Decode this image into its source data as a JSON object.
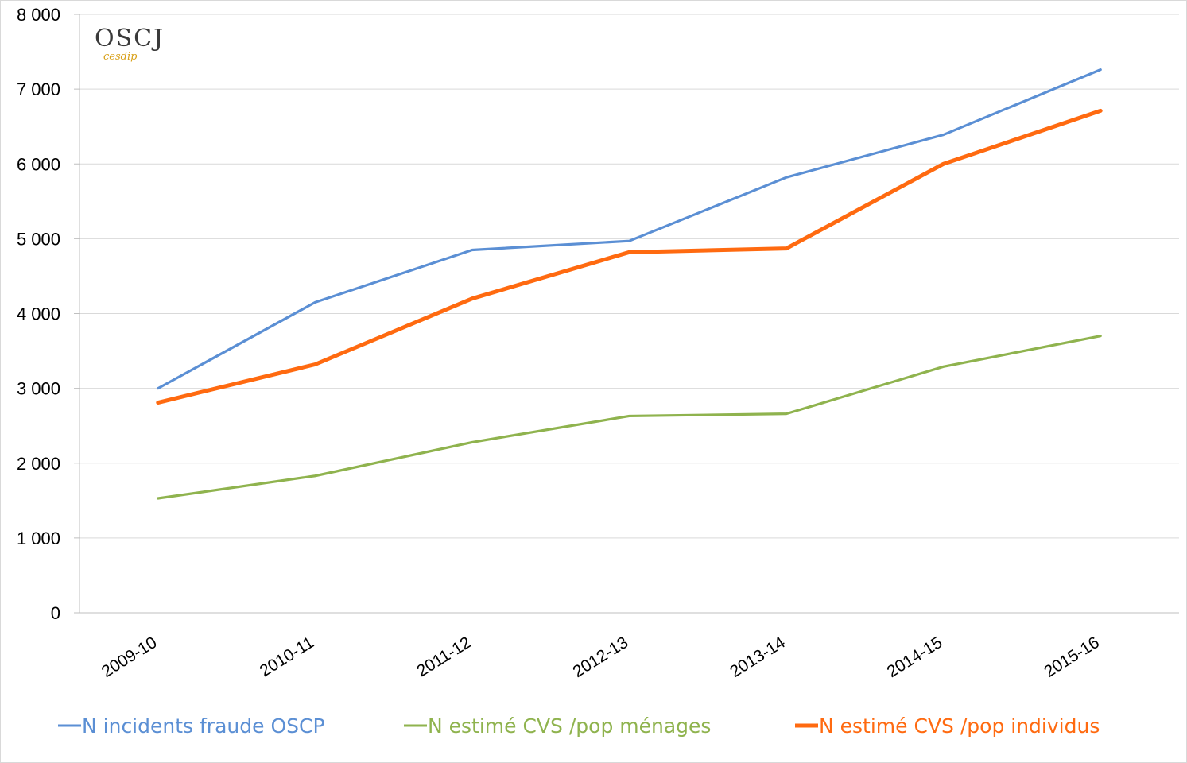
{
  "logo": {
    "text": "OSCJ",
    "subtext": "cesdip"
  },
  "chart_data": {
    "type": "line",
    "title": "",
    "xlabel": "",
    "ylabel": "",
    "categories": [
      "2009-10",
      "2010-11",
      "2011-12",
      "2012-13",
      "2013-14",
      "2014-15",
      "2015-16"
    ],
    "ylim": [
      0,
      8000
    ],
    "yticks": [
      0,
      1000,
      2000,
      3000,
      4000,
      5000,
      6000,
      7000,
      8000
    ],
    "ytick_labels": [
      "0",
      "1 000",
      "2 000",
      "3 000",
      "4 000",
      "5 000",
      "6 000",
      "7 000",
      "8 000"
    ],
    "grid": "horizontal",
    "legend_position": "bottom",
    "series": [
      {
        "name": "N incidents fraude OSCP",
        "color": "#5b8fd4",
        "values": [
          3000,
          4150,
          4850,
          4970,
          5820,
          6390,
          7260
        ]
      },
      {
        "name": "N estimé CVS /pop ménages",
        "color": "#8fb34e",
        "values": [
          1530,
          1830,
          2280,
          2630,
          2660,
          3290,
          3700
        ]
      },
      {
        "name": "N estimé CVS /pop individus",
        "color": "#ff6a10",
        "values": [
          2810,
          3320,
          4200,
          4820,
          4870,
          6000,
          6710
        ]
      }
    ]
  }
}
